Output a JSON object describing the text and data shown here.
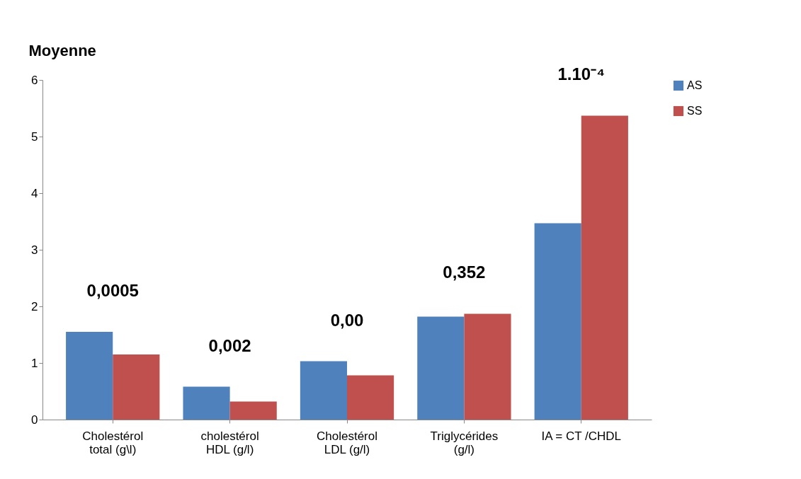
{
  "chart_data": {
    "type": "bar",
    "ylabel": "Moyenne",
    "categories": [
      "Cholestérol\ntotal (g\\l)",
      "cholestérol\nHDL (g/l)",
      "Cholestérol\nLDL (g/l)",
      "Triglycérides\n(g/l)",
      "IA = CT /CHDL"
    ],
    "series": [
      {
        "name": "AS",
        "color": "#4f81bd",
        "values": [
          1.55,
          0.58,
          1.03,
          1.82,
          3.47
        ]
      },
      {
        "name": "SS",
        "color": "#c0504d",
        "values": [
          1.15,
          0.32,
          0.78,
          1.87,
          5.37
        ]
      }
    ],
    "ylim": [
      0,
      6
    ],
    "yticks": [
      0,
      1,
      2,
      3,
      4,
      5,
      6
    ],
    "grid": false,
    "legend": "right",
    "annotations": [
      "0,0005",
      "0,002",
      "0,00",
      "0,352",
      "1.10⁻⁴"
    ]
  }
}
